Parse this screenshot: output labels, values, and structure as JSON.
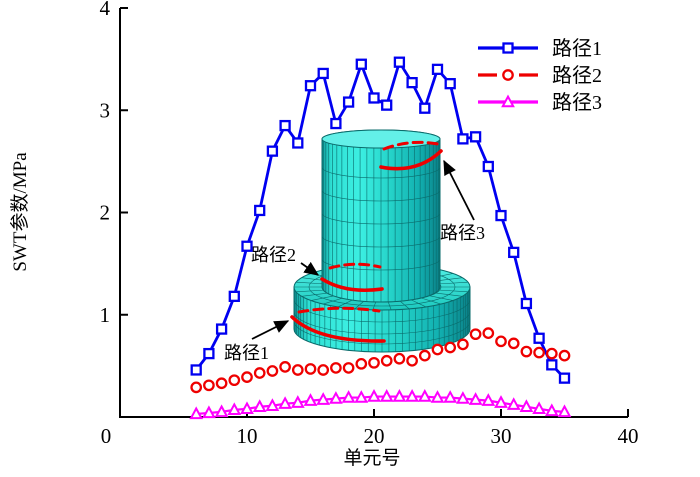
{
  "chart_data": {
    "type": "line",
    "title": "",
    "xlabel": "单元号",
    "ylabel": "SWT参数/MPa",
    "xlim": [
      0,
      40
    ],
    "ylim": [
      0,
      4
    ],
    "xticks": [
      0,
      10,
      20,
      30,
      40
    ],
    "yticks": [
      0,
      1,
      2,
      3,
      4
    ],
    "grid": false,
    "legend_position": "top-right",
    "x": [
      6,
      7,
      8,
      9,
      10,
      11,
      12,
      13,
      14,
      15,
      16,
      17,
      18,
      19,
      20,
      21,
      22,
      23,
      24,
      25,
      26,
      27,
      28,
      29,
      30,
      31,
      32,
      33,
      34,
      35
    ],
    "series": [
      {
        "name": "路径1",
        "color": "#0000f0",
        "marker": "square",
        "line": "solid",
        "legend_line": "solid",
        "values": [
          0.46,
          0.62,
          0.86,
          1.18,
          1.67,
          2.02,
          2.6,
          2.85,
          2.68,
          3.24,
          3.36,
          2.87,
          3.08,
          3.45,
          3.12,
          3.05,
          3.47,
          3.27,
          3.02,
          3.4,
          3.26,
          2.72,
          2.74,
          2.45,
          1.97,
          1.61,
          1.11,
          0.77,
          0.51,
          0.38
        ]
      },
      {
        "name": "路径2",
        "color": "#ee0000",
        "marker": "circle",
        "line": "none",
        "legend_line": "dashed",
        "values": [
          0.29,
          0.31,
          0.33,
          0.36,
          0.39,
          0.43,
          0.45,
          0.49,
          0.46,
          0.47,
          0.46,
          0.48,
          0.48,
          0.52,
          0.53,
          0.55,
          0.57,
          0.55,
          0.6,
          0.66,
          0.68,
          0.71,
          0.81,
          0.82,
          0.74,
          0.72,
          0.64,
          0.63,
          0.62,
          0.6
        ]
      },
      {
        "name": "路径3",
        "color": "#ff00ff",
        "marker": "triangle",
        "line": "solid",
        "legend_line": "solid",
        "values": [
          0.03,
          0.04,
          0.05,
          0.07,
          0.08,
          0.1,
          0.11,
          0.13,
          0.14,
          0.16,
          0.17,
          0.18,
          0.19,
          0.19,
          0.2,
          0.2,
          0.2,
          0.2,
          0.2,
          0.19,
          0.19,
          0.18,
          0.17,
          0.16,
          0.14,
          0.12,
          0.1,
          0.08,
          0.06,
          0.05
        ]
      }
    ],
    "inset": {
      "description": "finite element mesh of a stepped cylinder with three fatigue evaluation paths marked in red",
      "mesh_color": "#2bdccf",
      "path_color": "#ee0000",
      "labels": [
        {
          "text": "路径1"
        },
        {
          "text": "路径2"
        },
        {
          "text": "路径3"
        }
      ]
    }
  }
}
